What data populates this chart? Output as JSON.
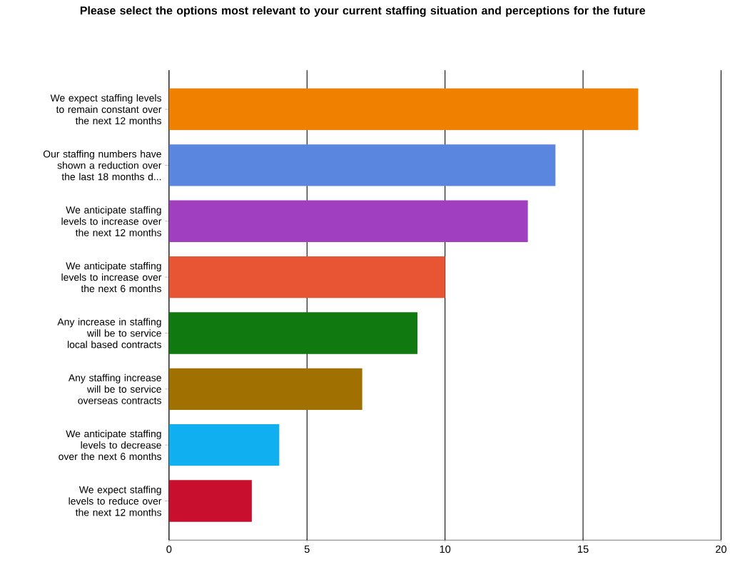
{
  "chart_data": {
    "type": "bar",
    "orientation": "horizontal",
    "title": "Please select the options most relevant to your current staffing situation and perceptions for the future",
    "categories": [
      "We expect staffing levels to remain constant over the next 12 months",
      "Our staffing numbers have shown a reduction over the last 18 months d...",
      "We anticipate staffing levels to increase over the next 12 months",
      "We anticipate staffing levels to increase over the next 6 months",
      "Any increase in staffing will be to service local based contracts",
      "Any staffing increase will be to service overseas contracts",
      "We anticipate staffing levels to decrease over the next 6 months",
      "We expect staffing levels to reduce over the next 12 months"
    ],
    "values": [
      17,
      14,
      13,
      10,
      9,
      7,
      4,
      3
    ],
    "colors": [
      "#f08000",
      "#5b86e0",
      "#a040c0",
      "#e85535",
      "#107a10",
      "#a07000",
      "#10b0f0",
      "#c8102e"
    ],
    "xlim": [
      0,
      20
    ],
    "xticks": [
      0,
      5,
      10,
      15,
      20
    ],
    "grid": "x"
  }
}
